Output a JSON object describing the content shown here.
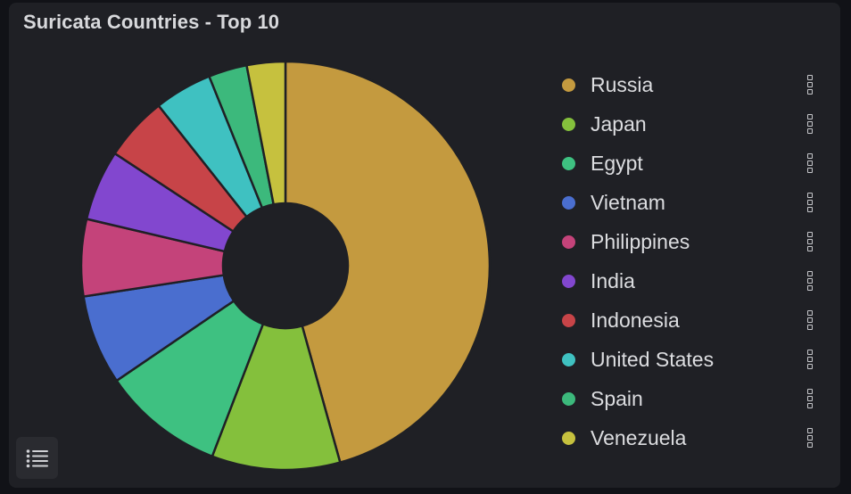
{
  "panel": {
    "title": "Suricata Countries - Top 10"
  },
  "chart_data": {
    "type": "pie",
    "donut": true,
    "legend_placement": "right",
    "labels": [
      "Russia",
      "Japan",
      "Egypt",
      "Vietnam",
      "Philippines",
      "India",
      "Indonesia",
      "United States",
      "Spain",
      "Venezuela"
    ],
    "values": [
      45,
      10,
      9.5,
      7,
      6,
      5.5,
      5,
      4.5,
      3,
      3
    ],
    "colors": [
      "#c49a3f",
      "#84c03c",
      "#3ec181",
      "#4a6ecf",
      "#c4437a",
      "#8247cf",
      "#c74448",
      "#3fc1c1",
      "#3cb97c",
      "#c6c13e"
    ]
  },
  "icons": {
    "series_menu": "kebab-icon",
    "legend_toggle": "list-icon"
  }
}
